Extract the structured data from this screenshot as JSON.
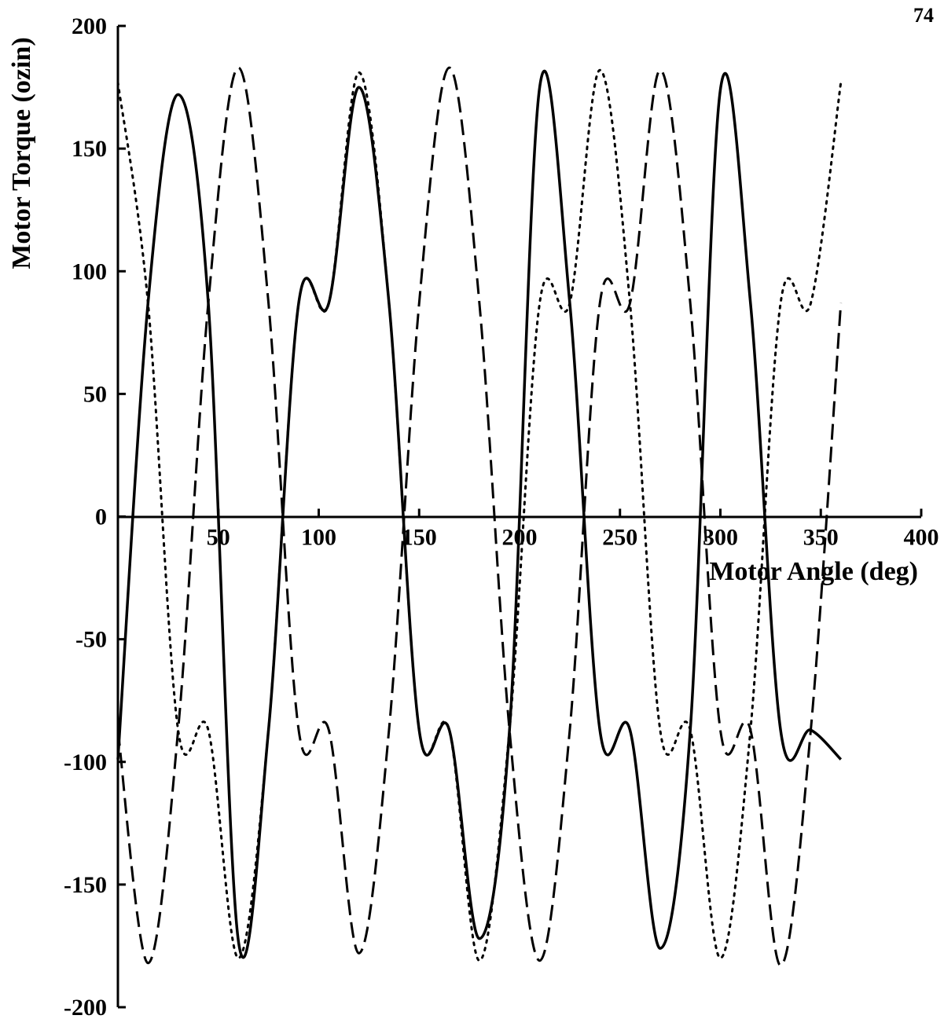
{
  "page_number": "74",
  "chart_data": {
    "type": "line",
    "xlabel": "Motor Angle  (deg)",
    "ylabel": "Motor Torque  (ozin)",
    "xlim": [
      0,
      400
    ],
    "ylim": [
      -200,
      200
    ],
    "x_ticks": [
      50,
      100,
      150,
      200,
      250,
      300,
      350,
      400
    ],
    "x_tick_labels": [
      "50",
      "100",
      "150",
      "200",
      "250",
      "300",
      "350",
      "400"
    ],
    "y_ticks": [
      200,
      150,
      100,
      50,
      0,
      -50,
      -100,
      -150,
      -200
    ],
    "y_tick_labels": [
      "200",
      "150",
      "100",
      "50",
      "0",
      "-50",
      "-100",
      "-150",
      "-200"
    ],
    "grid": false,
    "legend": "none",
    "x": [
      0,
      15,
      30,
      45,
      60,
      75,
      90,
      105,
      120,
      135,
      150,
      165,
      180,
      195,
      210,
      225,
      240,
      255,
      270,
      285,
      300,
      315,
      330,
      345,
      360
    ],
    "series": [
      {
        "style": "solid",
        "color": "#000000",
        "values": [
          -99,
          87,
          172,
          87,
          -173,
          -87,
          87,
          87,
          175,
          87,
          -87,
          -87,
          -172,
          -87,
          175,
          87,
          -87,
          -87,
          -176,
          -87,
          174,
          87,
          -87,
          -87,
          -99
        ]
      },
      {
        "style": "dashed",
        "color": "#000000",
        "values": [
          -87,
          -182,
          -87,
          87,
          183,
          87,
          -87,
          -87,
          -178,
          -87,
          87,
          183,
          87,
          -87,
          -181,
          -87,
          87,
          87,
          182,
          87,
          -87,
          -87,
          -183,
          -87,
          87
        ]
      },
      {
        "style": "dotted",
        "color": "#000000",
        "values": [
          177,
          87,
          -87,
          -87,
          -180,
          -87,
          87,
          87,
          181,
          87,
          -87,
          -87,
          -181,
          -87,
          87,
          87,
          182,
          87,
          -87,
          -87,
          -180,
          -87,
          87,
          87,
          177
        ]
      }
    ]
  }
}
